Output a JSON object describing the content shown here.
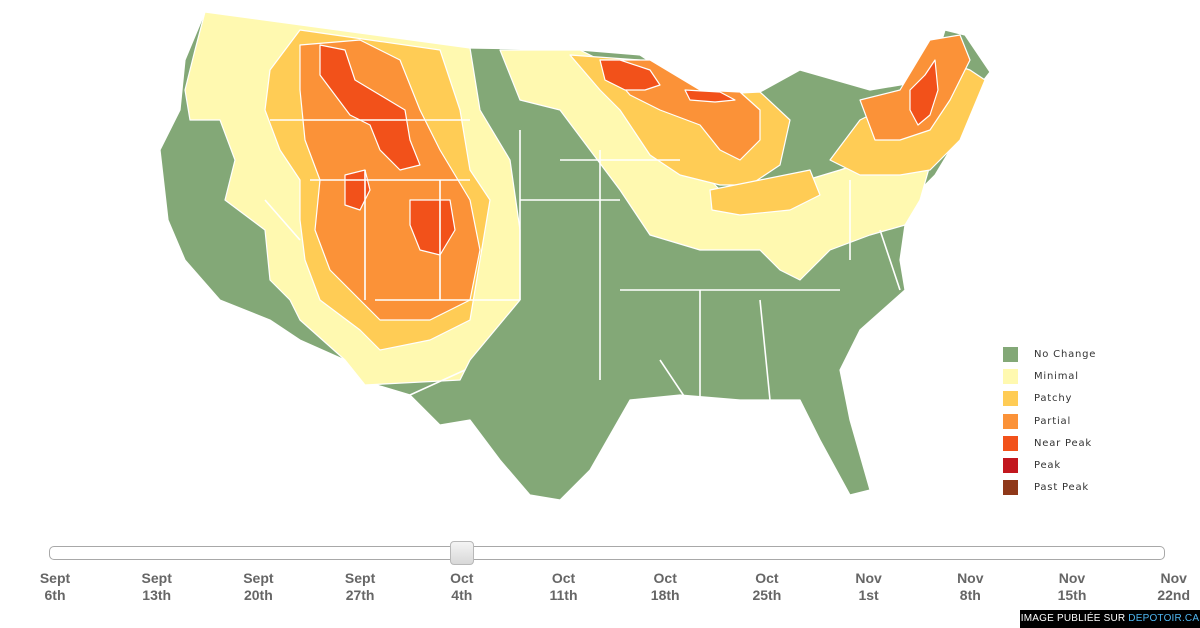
{
  "legend": {
    "items": [
      {
        "label": "No Change",
        "color": "#83a877"
      },
      {
        "label": "Minimal",
        "color": "#fff9b0"
      },
      {
        "label": "Patchy",
        "color": "#ffcc55"
      },
      {
        "label": "Partial",
        "color": "#fb9238"
      },
      {
        "label": "Near Peak",
        "color": "#f2511a"
      },
      {
        "label": "Peak",
        "color": "#c2171e"
      },
      {
        "label": "Past Peak",
        "color": "#8f3819"
      }
    ]
  },
  "slider": {
    "selected": "Oct 4th",
    "selected_index": 4,
    "ticks": [
      {
        "line1": "Sept",
        "line2": "6th"
      },
      {
        "line1": "Sept",
        "line2": "13th"
      },
      {
        "line1": "Sept",
        "line2": "20th"
      },
      {
        "line1": "Sept",
        "line2": "27th"
      },
      {
        "line1": "Oct",
        "line2": "4th"
      },
      {
        "line1": "Oct",
        "line2": "11th"
      },
      {
        "line1": "Oct",
        "line2": "18th"
      },
      {
        "line1": "Oct",
        "line2": "25th"
      },
      {
        "line1": "Nov",
        "line2": "1st"
      },
      {
        "line1": "Nov",
        "line2": "8th"
      },
      {
        "line1": "Nov",
        "line2": "15th"
      },
      {
        "line1": "Nov",
        "line2": "22nd"
      }
    ]
  },
  "credit": {
    "prefix": "IMAGE PUBLIÉE SUR ",
    "brand": "DEPOTOIR.CA"
  },
  "map": {
    "level_colors": {
      "no_change": "#83a877",
      "minimal": "#fff9b0",
      "patchy": "#ffcc55",
      "partial": "#fb9238",
      "near_peak": "#f2511a",
      "peak": "#c2171e"
    }
  }
}
